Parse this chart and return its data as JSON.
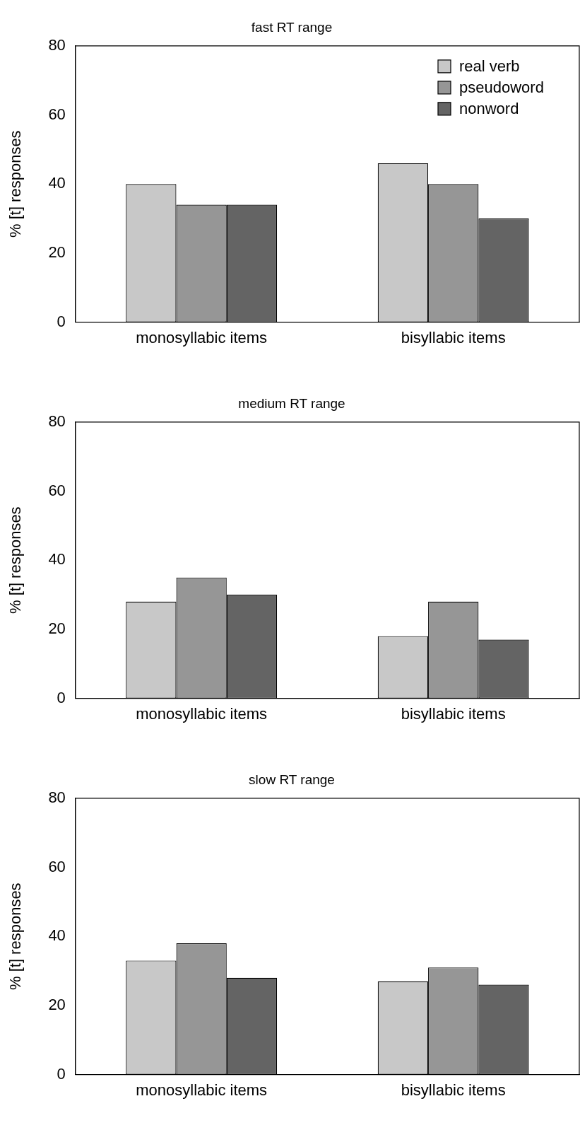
{
  "chart_data": [
    {
      "type": "bar",
      "title": "fast RT range",
      "ylabel": "% [t] responses",
      "categories": [
        "monosyllabic items",
        "bisyllabic items"
      ],
      "series": [
        {
          "name": "real verb",
          "color": "#c8c8c8",
          "values": [
            40,
            46
          ]
        },
        {
          "name": "pseudoword",
          "color": "#969696",
          "values": [
            34,
            40
          ]
        },
        {
          "name": "nonword",
          "color": "#646464",
          "values": [
            34,
            30
          ]
        }
      ],
      "ylim": [
        0,
        80
      ],
      "yticks": [
        0,
        20,
        40,
        60,
        80
      ],
      "grid": false,
      "legend": "top right"
    },
    {
      "type": "bar",
      "title": "medium RT range",
      "ylabel": "% [t] responses",
      "categories": [
        "monosyllabic items",
        "bisyllabic items"
      ],
      "series": [
        {
          "color": "#c8c8c8",
          "values": [
            28,
            18
          ]
        },
        {
          "color": "#969696",
          "values": [
            35,
            28
          ]
        },
        {
          "color": "#646464",
          "values": [
            30,
            17
          ]
        }
      ],
      "ylim": [
        0,
        80
      ],
      "yticks": [
        0,
        20,
        40,
        60,
        80
      ],
      "grid": false,
      "legend": false
    },
    {
      "type": "bar",
      "title": "slow RT range",
      "ylabel": "% [t] responses",
      "categories": [
        "monosyllabic items",
        "bisyllabic items"
      ],
      "series": [
        {
          "color": "#c8c8c8",
          "values": [
            33,
            27
          ]
        },
        {
          "color": "#969696",
          "values": [
            38,
            31
          ]
        },
        {
          "color": "#646464",
          "values": [
            28,
            26
          ]
        }
      ],
      "ylim": [
        0,
        80
      ],
      "yticks": [
        0,
        20,
        40,
        60,
        80
      ],
      "grid": false,
      "legend": false
    }
  ]
}
